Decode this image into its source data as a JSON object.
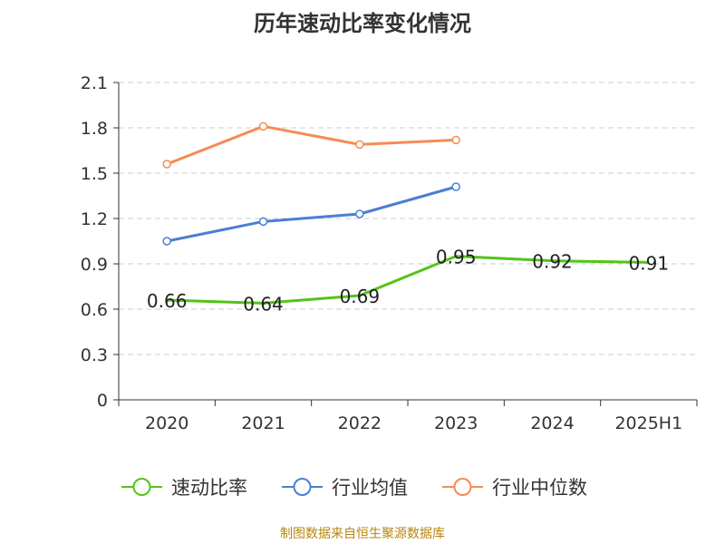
{
  "title": "历年速动比率变化情况",
  "footer": "制图数据来自恒生聚源数据库",
  "chart_data": {
    "type": "line",
    "categories": [
      "2020",
      "2021",
      "2022",
      "2023",
      "2024",
      "2025H1"
    ],
    "ylim": [
      0,
      2.1
    ],
    "yticks": [
      "0",
      "0.3",
      "0.6",
      "0.9",
      "1.2",
      "1.5",
      "1.8",
      "2.1"
    ],
    "grid": true,
    "legend_position": "bottom",
    "series": [
      {
        "name": "速动比率",
        "color": "#52c41a",
        "values": [
          0.66,
          0.64,
          0.69,
          0.95,
          0.92,
          0.91
        ],
        "labels": [
          "0.66",
          "0.64",
          "0.69",
          "0.95",
          "0.92",
          "0.91"
        ]
      },
      {
        "name": "行业均值",
        "color": "#4a7fd4",
        "values": [
          1.05,
          1.18,
          1.23,
          1.41,
          null,
          null
        ]
      },
      {
        "name": "行业中位数",
        "color": "#f58c54",
        "values": [
          1.56,
          1.81,
          1.69,
          1.72,
          null,
          null
        ]
      }
    ]
  }
}
